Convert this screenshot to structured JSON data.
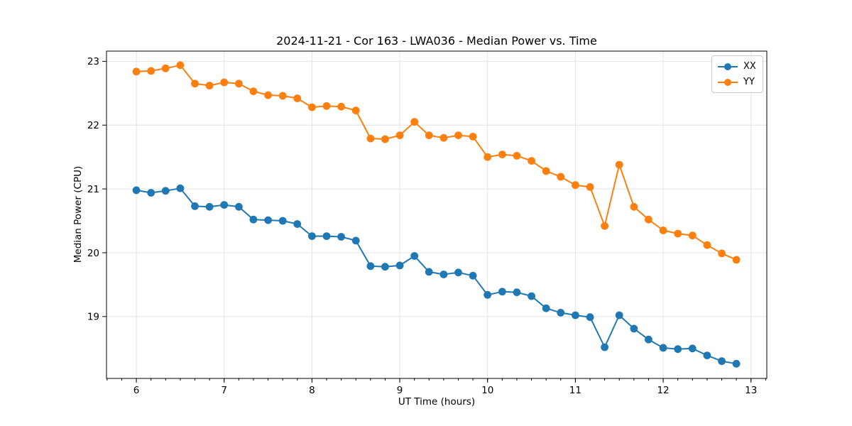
{
  "figure": {
    "background": "#ffffff"
  },
  "chart_data": {
    "type": "line",
    "title": "2024-11-21 - Cor 163 - LWA036 - Median Power vs. Time",
    "xlabel": "UT Time (hours)",
    "ylabel": "Median Power (CPU)",
    "xlim": [
      5.66,
      13.18
    ],
    "ylim": [
      18.03,
      23.16
    ],
    "xticks": [
      6,
      7,
      8,
      9,
      10,
      11,
      12,
      13
    ],
    "yticks": [
      19,
      20,
      21,
      22,
      23
    ],
    "x_minor_tick_step": 0.166667,
    "grid": true,
    "grid_color": "#e3e3e3",
    "legend_position": "upper right",
    "x": [
      6.0,
      6.167,
      6.333,
      6.5,
      6.667,
      6.833,
      7.0,
      7.167,
      7.333,
      7.5,
      7.667,
      7.833,
      8.0,
      8.167,
      8.333,
      8.5,
      8.667,
      8.833,
      9.0,
      9.167,
      9.333,
      9.5,
      9.667,
      9.833,
      10.0,
      10.167,
      10.333,
      10.5,
      10.667,
      10.833,
      11.0,
      11.167,
      11.333,
      11.5,
      11.667,
      11.833,
      12.0,
      12.167,
      12.333,
      12.5,
      12.667,
      12.833
    ],
    "series": [
      {
        "name": "XX",
        "color": "#1f77b4",
        "values": [
          20.98,
          20.94,
          20.97,
          21.01,
          20.73,
          20.72,
          20.75,
          20.72,
          20.52,
          20.51,
          20.5,
          20.45,
          20.26,
          20.26,
          20.25,
          20.19,
          19.79,
          19.78,
          19.8,
          19.95,
          19.7,
          19.66,
          19.69,
          19.64,
          19.34,
          19.39,
          19.38,
          19.32,
          19.13,
          19.06,
          19.02,
          18.99,
          18.52,
          19.02,
          18.81,
          18.64,
          18.51,
          18.49,
          18.5,
          18.39,
          18.3,
          18.26
        ]
      },
      {
        "name": "YY",
        "color": "#ff7f0e",
        "values": [
          22.84,
          22.85,
          22.89,
          22.94,
          22.65,
          22.62,
          22.67,
          22.65,
          22.53,
          22.47,
          22.46,
          22.42,
          22.28,
          22.3,
          22.29,
          22.23,
          21.79,
          21.78,
          21.84,
          22.05,
          21.84,
          21.8,
          21.84,
          21.82,
          21.5,
          21.54,
          21.52,
          21.44,
          21.28,
          21.19,
          21.06,
          21.03,
          20.42,
          21.38,
          20.72,
          20.52,
          20.35,
          20.3,
          20.27,
          20.12,
          19.99,
          19.89
        ]
      }
    ]
  }
}
